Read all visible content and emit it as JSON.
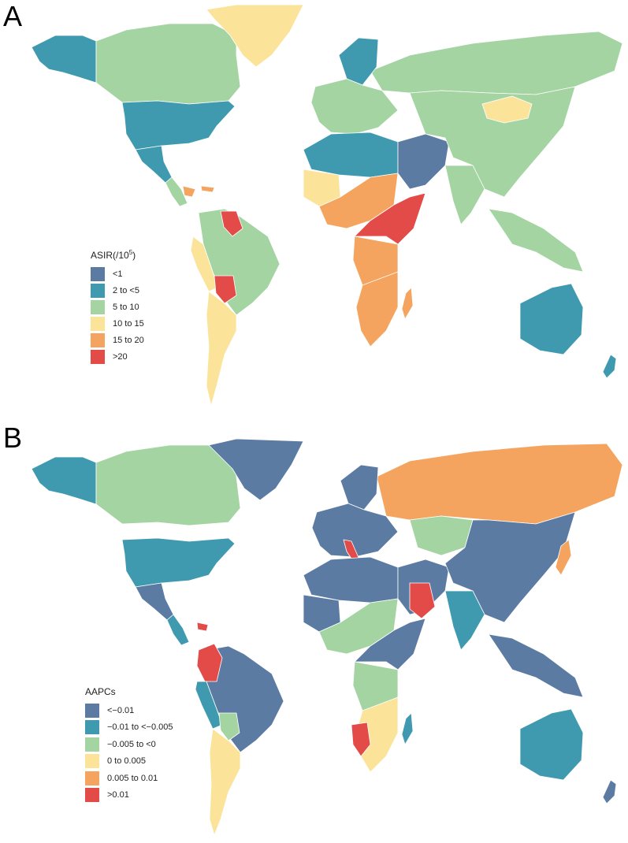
{
  "palette": {
    "blue": "#5b7ba3",
    "teal": "#3f9ab0",
    "green": "#a3d4a2",
    "yellow": "#fbe49a",
    "orange": "#f4a45e",
    "red": "#e24b47"
  },
  "panel_a": {
    "letter": "A",
    "legend": {
      "title": "ASIR(/10",
      "title_sup": "5",
      "title_end": ")",
      "items": [
        {
          "label": "<1",
          "color": "#5b7ba3"
        },
        {
          "label": "2 to <5",
          "color": "#3f9ab0"
        },
        {
          "label": "5 to 10",
          "color": "#a3d4a2"
        },
        {
          "label": "10 to 15",
          "color": "#fbe49a"
        },
        {
          "label": "15 to 20",
          "color": "#f4a45e"
        },
        {
          "label": ">20",
          "color": "#e24b47"
        }
      ]
    },
    "regions": {
      "north_america": "green",
      "usa": "teal",
      "alaska": "teal",
      "greenland": "yellow",
      "mexico": "teal",
      "central_america": "green",
      "caribbean": "orange",
      "south_america": "green",
      "andes_west": "yellow",
      "bolivia": "red",
      "southern_cone": "yellow",
      "guianas": "red",
      "russia": "green",
      "europe_north": "teal",
      "europe": "green",
      "north_africa": "teal",
      "sahel_west": "yellow",
      "west_africa": "orange",
      "central_africa": "orange",
      "east_horn": "red",
      "southern_africa": "orange",
      "madagascar": "orange",
      "middle_east": "blue",
      "asia": "green",
      "mongolia": "yellow",
      "south_asia": "green",
      "australia": "teal",
      "new_zealand": "teal"
    }
  },
  "panel_b": {
    "letter": "B",
    "legend": {
      "title": "AAPCs",
      "items": [
        {
          "label": "<−0.01",
          "color": "#5b7ba3"
        },
        {
          "label": "−0.01 to <−0.005",
          "color": "#3f9ab0"
        },
        {
          "label": "−0.005 to <0",
          "color": "#a3d4a2"
        },
        {
          "label": "0 to 0.005",
          "color": "#fbe49a"
        },
        {
          "label": "0.005 to 0.01",
          "color": "#f4a45e"
        },
        {
          "label": ">0.01",
          "color": "#e24b47"
        }
      ]
    },
    "regions": {
      "north_america": "green",
      "usa": "teal",
      "alaska": "teal",
      "greenland": "blue",
      "mexico": "blue",
      "central_america": "teal",
      "caribbean": "red",
      "south_america": "blue",
      "andes_west": "teal",
      "bolivia": "green",
      "southern_cone": "yellow",
      "colombia": "red",
      "russia": "orange",
      "europe_north": "blue",
      "europe": "blue",
      "italy": "red",
      "north_africa": "blue",
      "sahel_west": "blue",
      "west_africa": "green",
      "central_africa": "green",
      "east_horn": "blue",
      "southern_africa": "yellow",
      "namibia": "red",
      "madagascar": "teal",
      "middle_east": "blue",
      "saudi": "red",
      "asia": "blue",
      "central_asia": "green",
      "south_asia": "teal",
      "australia": "teal",
      "new_zealand": "blue",
      "japan": "orange"
    }
  }
}
